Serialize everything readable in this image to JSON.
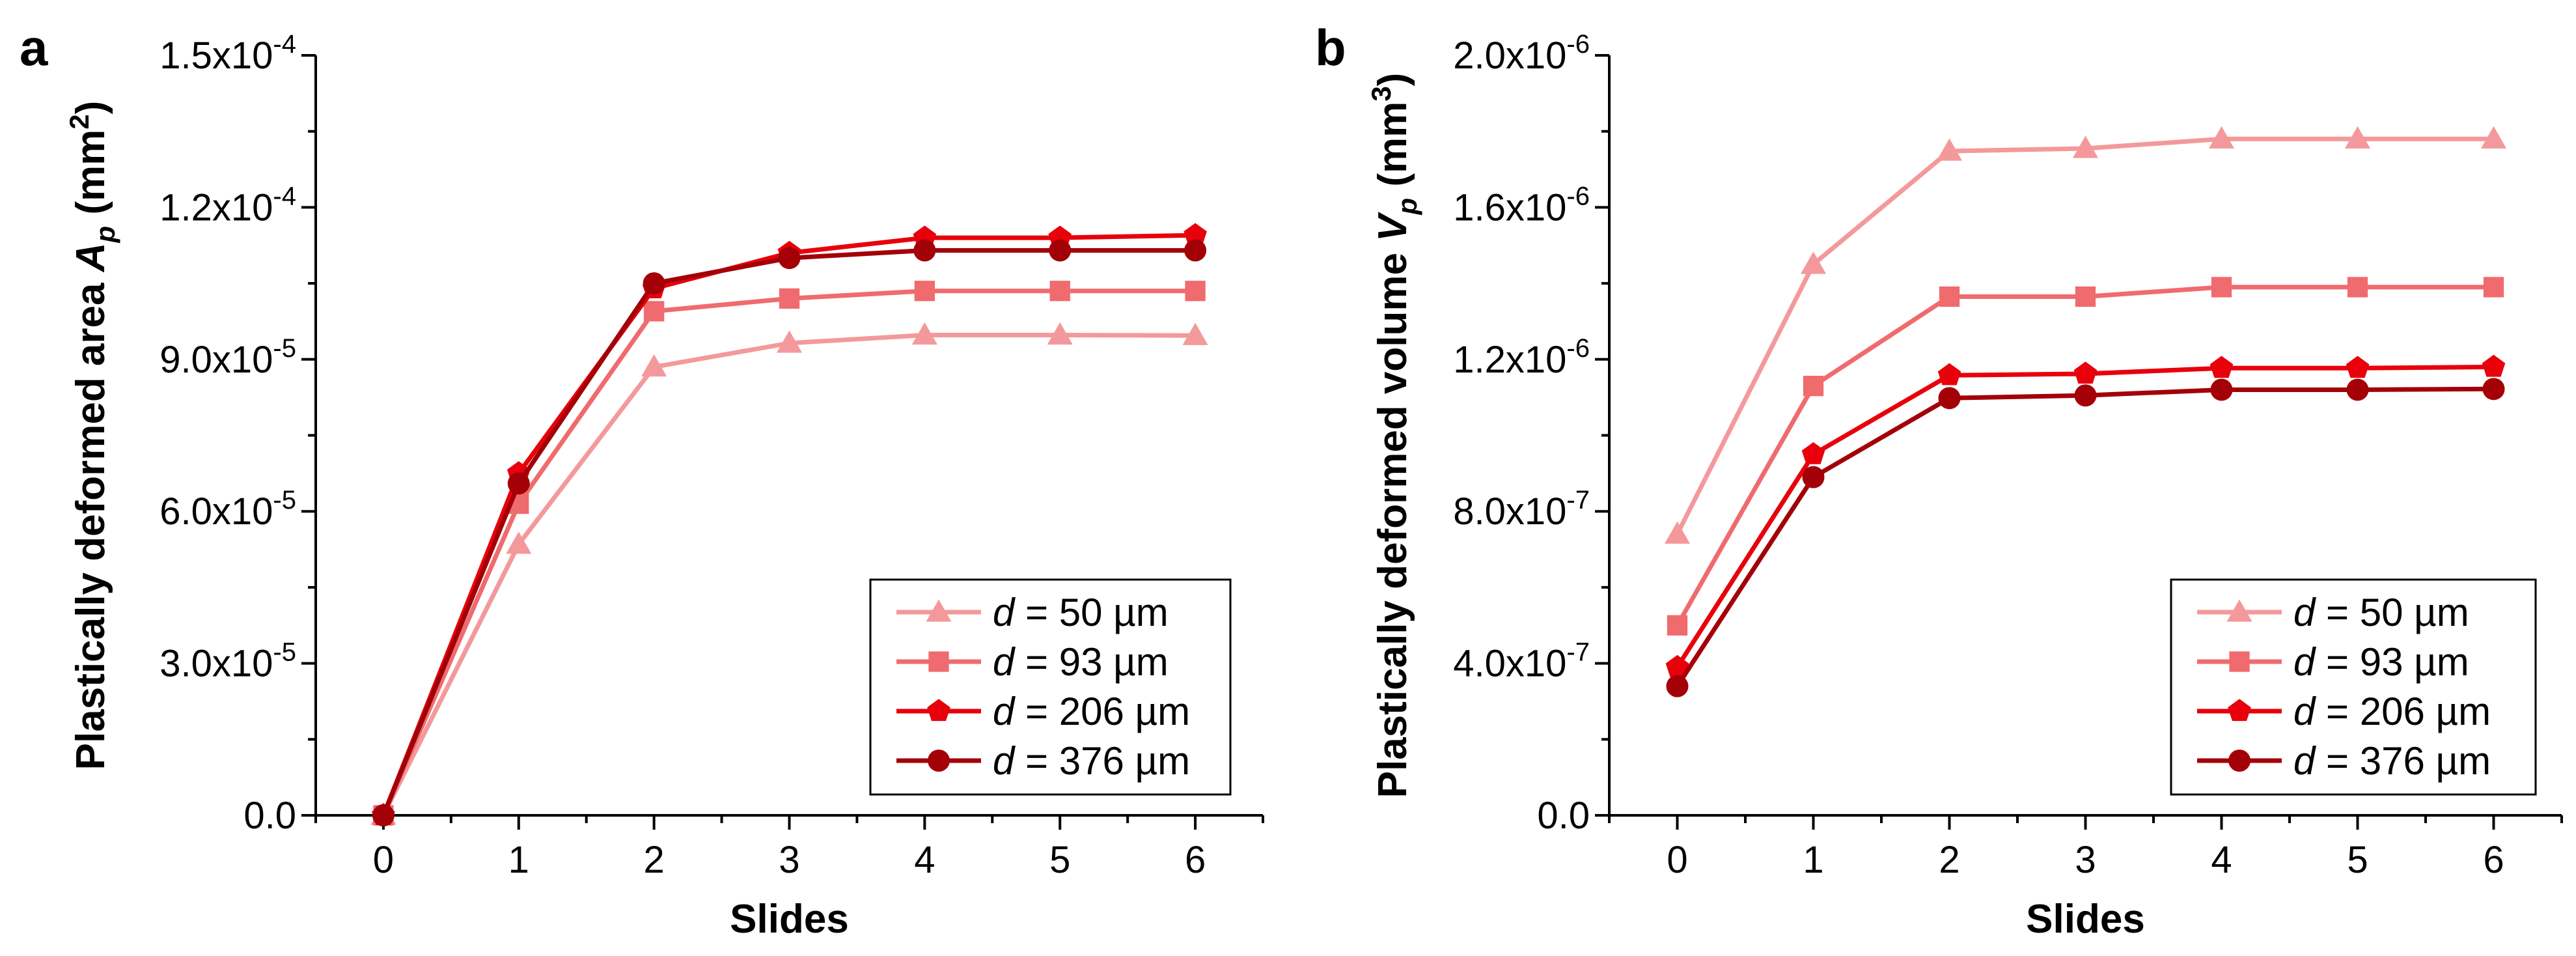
{
  "chart_data": [
    {
      "type": "line",
      "panel_label": "a",
      "xlabel": "Slides",
      "ylabel": {
        "prefix": "Plastically deformed area ",
        "symbol": "A",
        "subscript": "p",
        "units": " (mm",
        "units_sup": "2",
        "units_end": ")"
      },
      "x": [
        0,
        1,
        2,
        3,
        4,
        5,
        6
      ],
      "xlim": [
        -0.5,
        6.5
      ],
      "ylim": [
        0,
        0.00015
      ],
      "y_ticks": [
        {
          "value": 0,
          "base": "0.0",
          "exp": ""
        },
        {
          "value": 3e-05,
          "base": "3.0x10",
          "exp": "-5"
        },
        {
          "value": 6e-05,
          "base": "6.0x10",
          "exp": "-5"
        },
        {
          "value": 9e-05,
          "base": "9.0x10",
          "exp": "-5"
        },
        {
          "value": 0.00012,
          "base": "1.2x10",
          "exp": "-4"
        },
        {
          "value": 0.00015,
          "base": "1.5x10",
          "exp": "-4"
        }
      ],
      "legend_position": "bottom-right",
      "series": [
        {
          "name": "50 µm",
          "legend_var": "d",
          "legend_eq": " = ",
          "color": "#F4999B",
          "marker": "triangle",
          "values": [
            0,
            5.35e-05,
            8.85e-05,
            9.32e-05,
            9.48e-05,
            9.48e-05,
            9.47e-05
          ]
        },
        {
          "name": "93 µm",
          "legend_var": "d",
          "legend_eq": " = ",
          "color": "#EF6B6E",
          "marker": "square",
          "values": [
            0,
            6.15e-05,
            9.95e-05,
            0.000102,
            0.0001035,
            0.0001035,
            0.0001035
          ]
        },
        {
          "name": "206 µm",
          "legend_var": "d",
          "legend_eq": " = ",
          "color": "#E8000B",
          "marker": "pentagon",
          "values": [
            0,
            6.75e-05,
            0.000104,
            0.000111,
            0.000114,
            0.000114,
            0.0001145
          ]
        },
        {
          "name": "376 µm",
          "legend_var": "d",
          "legend_eq": " = ",
          "color": "#A30008",
          "marker": "circle",
          "values": [
            0,
            6.55e-05,
            0.000105,
            0.00011,
            0.0001115,
            0.0001115,
            0.0001115
          ]
        }
      ]
    },
    {
      "type": "line",
      "panel_label": "b",
      "xlabel": "Slides",
      "ylabel": {
        "prefix": "Plastically deformed volume ",
        "symbol": "V",
        "subscript": "p",
        "units": " (mm",
        "units_sup": "3",
        "units_end": ")"
      },
      "x": [
        0,
        1,
        2,
        3,
        4,
        5,
        6
      ],
      "xlim": [
        -0.5,
        6.5
      ],
      "ylim": [
        0,
        2e-06
      ],
      "y_ticks": [
        {
          "value": 0,
          "base": "0.0",
          "exp": ""
        },
        {
          "value": 4e-07,
          "base": "4.0x10",
          "exp": "-7"
        },
        {
          "value": 8e-07,
          "base": "8.0x10",
          "exp": "-7"
        },
        {
          "value": 1.2e-06,
          "base": "1.2x10",
          "exp": "-6"
        },
        {
          "value": 1.6e-06,
          "base": "1.6x10",
          "exp": "-6"
        },
        {
          "value": 2e-06,
          "base": "2.0x10",
          "exp": "-6"
        }
      ],
      "legend_position": "bottom-right",
      "series": [
        {
          "name": "50 µm",
          "legend_var": "d",
          "legend_eq": " = ",
          "color": "#F4999B",
          "marker": "triangle",
          "values": [
            7.4e-07,
            1.45e-06,
            1.748e-06,
            1.755e-06,
            1.78e-06,
            1.78e-06,
            1.78e-06
          ]
        },
        {
          "name": "93 µm",
          "legend_var": "d",
          "legend_eq": " = ",
          "color": "#EF6B6E",
          "marker": "square",
          "values": [
            5e-07,
            1.13e-06,
            1.365e-06,
            1.365e-06,
            1.39e-06,
            1.39e-06,
            1.39e-06
          ]
        },
        {
          "name": "206 µm",
          "legend_var": "d",
          "legend_eq": " = ",
          "color": "#E8000B",
          "marker": "pentagon",
          "values": [
            3.9e-07,
            9.5e-07,
            1.158e-06,
            1.162e-06,
            1.177e-06,
            1.177e-06,
            1.18e-06
          ]
        },
        {
          "name": "376 µm",
          "legend_var": "d",
          "legend_eq": " = ",
          "color": "#A30008",
          "marker": "circle",
          "values": [
            3.4e-07,
            8.9e-07,
            1.098e-06,
            1.105e-06,
            1.12e-06,
            1.12e-06,
            1.122e-06
          ]
        }
      ]
    }
  ]
}
